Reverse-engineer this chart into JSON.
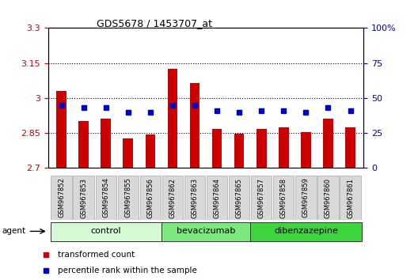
{
  "title": "GDS5678 / 1453707_at",
  "samples": [
    "GSM967852",
    "GSM967853",
    "GSM967854",
    "GSM967855",
    "GSM967856",
    "GSM967862",
    "GSM967863",
    "GSM967864",
    "GSM967865",
    "GSM967857",
    "GSM967858",
    "GSM967859",
    "GSM967860",
    "GSM967861"
  ],
  "transformed_count": [
    3.03,
    2.9,
    2.91,
    2.828,
    2.845,
    3.125,
    3.065,
    2.868,
    2.848,
    2.868,
    2.873,
    2.853,
    2.91,
    2.873
  ],
  "percentile_rank": [
    45,
    43,
    43,
    40,
    40,
    45,
    45,
    41,
    40,
    41,
    41,
    40,
    43,
    41
  ],
  "ylim_left": [
    2.7,
    3.3
  ],
  "ylim_right": [
    0,
    100
  ],
  "yticks_left": [
    2.7,
    2.85,
    3.0,
    3.15,
    3.3
  ],
  "ytick_labels_left": [
    "2.7",
    "2.85",
    "3",
    "3.15",
    "3.3"
  ],
  "yticks_right": [
    0,
    25,
    50,
    75,
    100
  ],
  "ytick_labels_right": [
    "0",
    "25",
    "50",
    "75",
    "100%"
  ],
  "groups": [
    {
      "label": "control",
      "start": 0,
      "end": 5,
      "color": "#d4f7d4"
    },
    {
      "label": "bevacizumab",
      "start": 5,
      "end": 9,
      "color": "#7de87d"
    },
    {
      "label": "dibenzazepine",
      "start": 9,
      "end": 14,
      "color": "#3dd43d"
    }
  ],
  "bar_color": "#cc0000",
  "dot_color": "#0000cc",
  "bar_bottom": 2.7,
  "agent_label": "agent",
  "legend_bar_label": "transformed count",
  "legend_dot_label": "percentile rank within the sample",
  "tick_label_color_left": "#cc0000",
  "tick_label_color_right": "#0000cc",
  "grid_dotted_at": [
    2.85,
    3.0,
    3.15
  ],
  "xtick_bg_color": "#d8d8d8"
}
